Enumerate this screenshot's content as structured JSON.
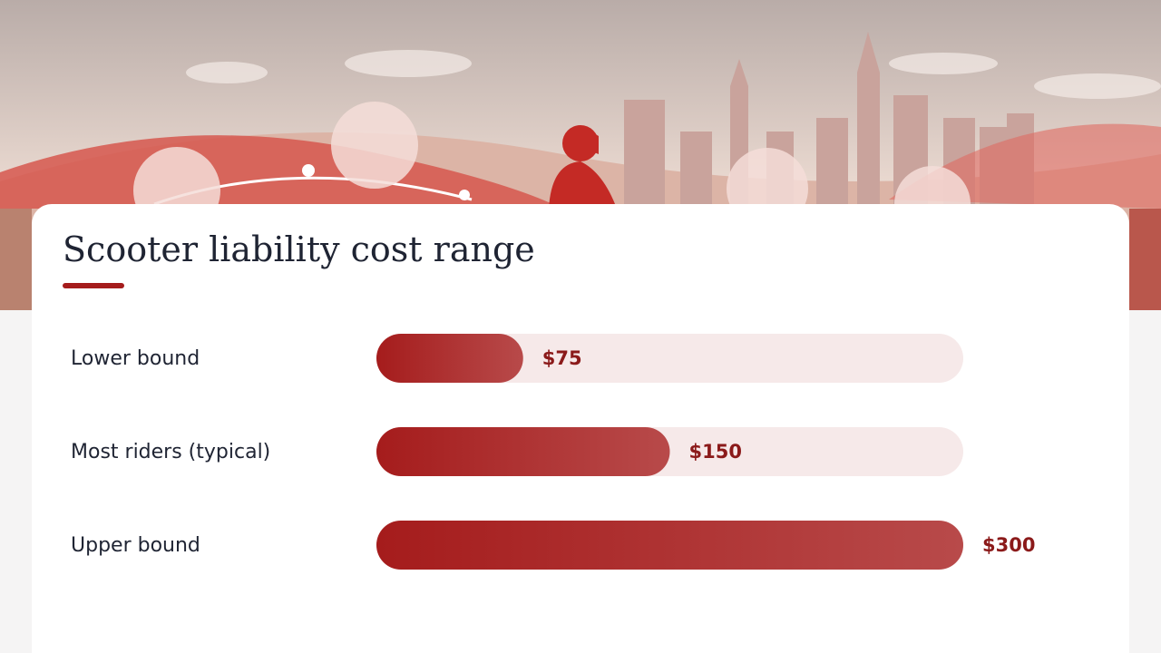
{
  "chart_data": {
    "type": "bar",
    "orientation": "horizontal",
    "title": "Scooter liability cost range",
    "categories": [
      "Lower bound",
      "Most riders (typical)",
      "Upper bound"
    ],
    "values": [
      75,
      150,
      300
    ],
    "value_labels": [
      "$75",
      "$150",
      "$300"
    ],
    "color": "#a51c1c",
    "xlim": [
      0,
      300
    ]
  }
}
